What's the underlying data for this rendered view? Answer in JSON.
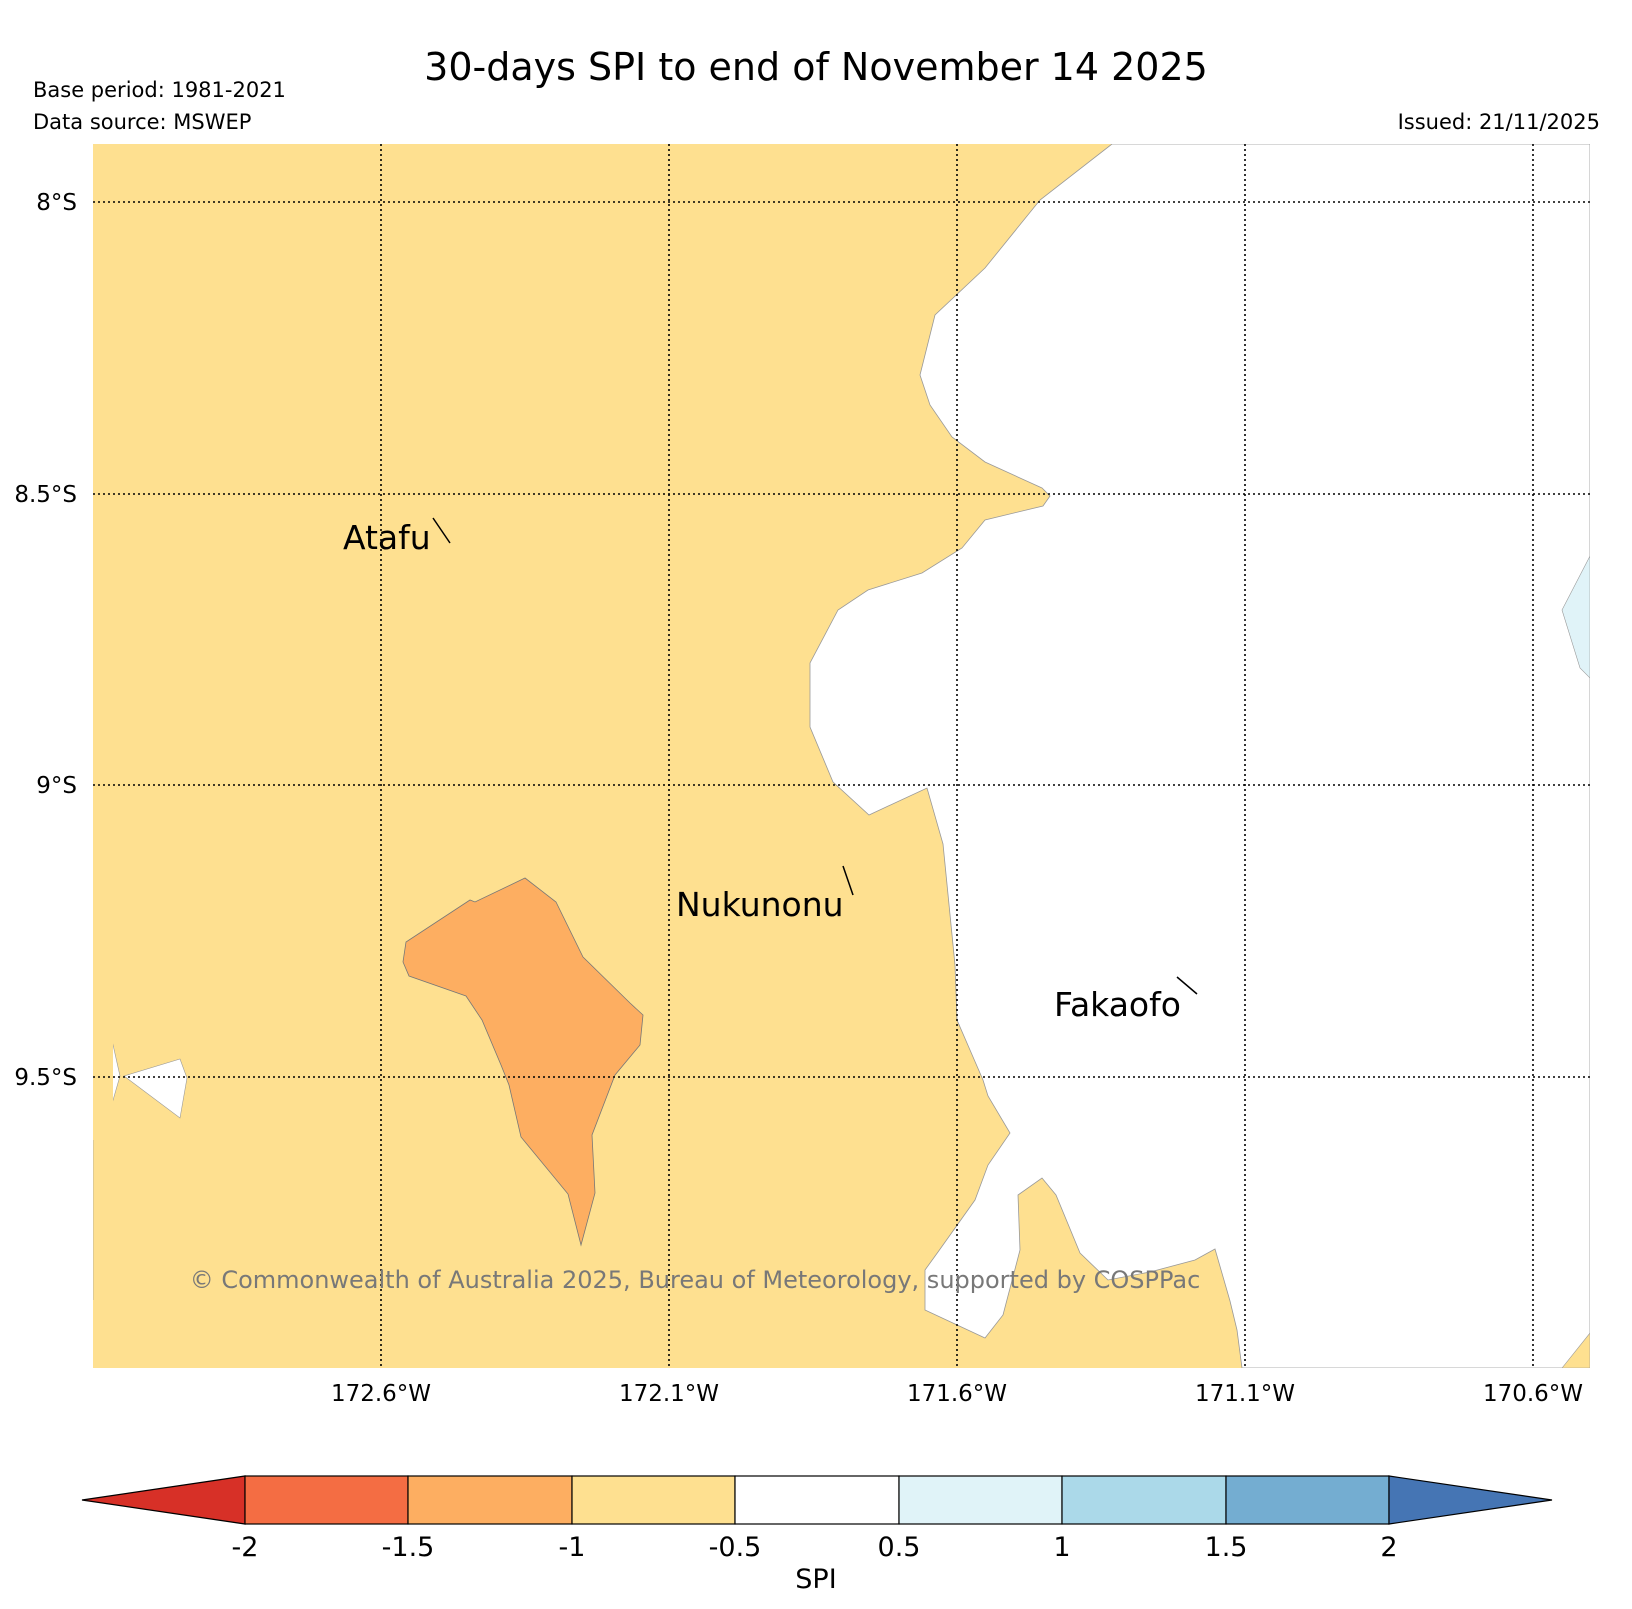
{
  "header": {
    "title": "30-days SPI to end of November 14 2025",
    "base_period": "Base period: 1981-2021",
    "data_source": "Data source: MSWEP",
    "issued": "Issued: 21/11/2025"
  },
  "map": {
    "latitude_labels": [
      "8°S",
      "8.5°S",
      "9°S",
      "9.5°S"
    ],
    "longitude_labels": [
      "172.6°W",
      "172.1°W",
      "171.6°W",
      "171.1°W",
      "170.6°W"
    ],
    "places": {
      "atafu": "Atafu",
      "nukunonu": "Nukunonu",
      "fakaofo": "Fakaofo"
    },
    "copyright": "© Commonwealth of Australia 2025, Bureau of Meteorology, supported by COSPPac"
  },
  "colorbar": {
    "label": "SPI",
    "tick_labels": [
      "-2",
      "-1.5",
      "-1",
      "-0.5",
      "0.5",
      "1",
      "1.5",
      "2"
    ],
    "colors": {
      "extend_low": "#d73027",
      "c1": "#f46d43",
      "c2": "#fdae61",
      "c3": "#fee090",
      "c4": "#ffffff",
      "c5": "#e0f3f8",
      "c6": "#abd9e9",
      "c7": "#74add1",
      "extend_high": "#4575b4"
    }
  }
}
